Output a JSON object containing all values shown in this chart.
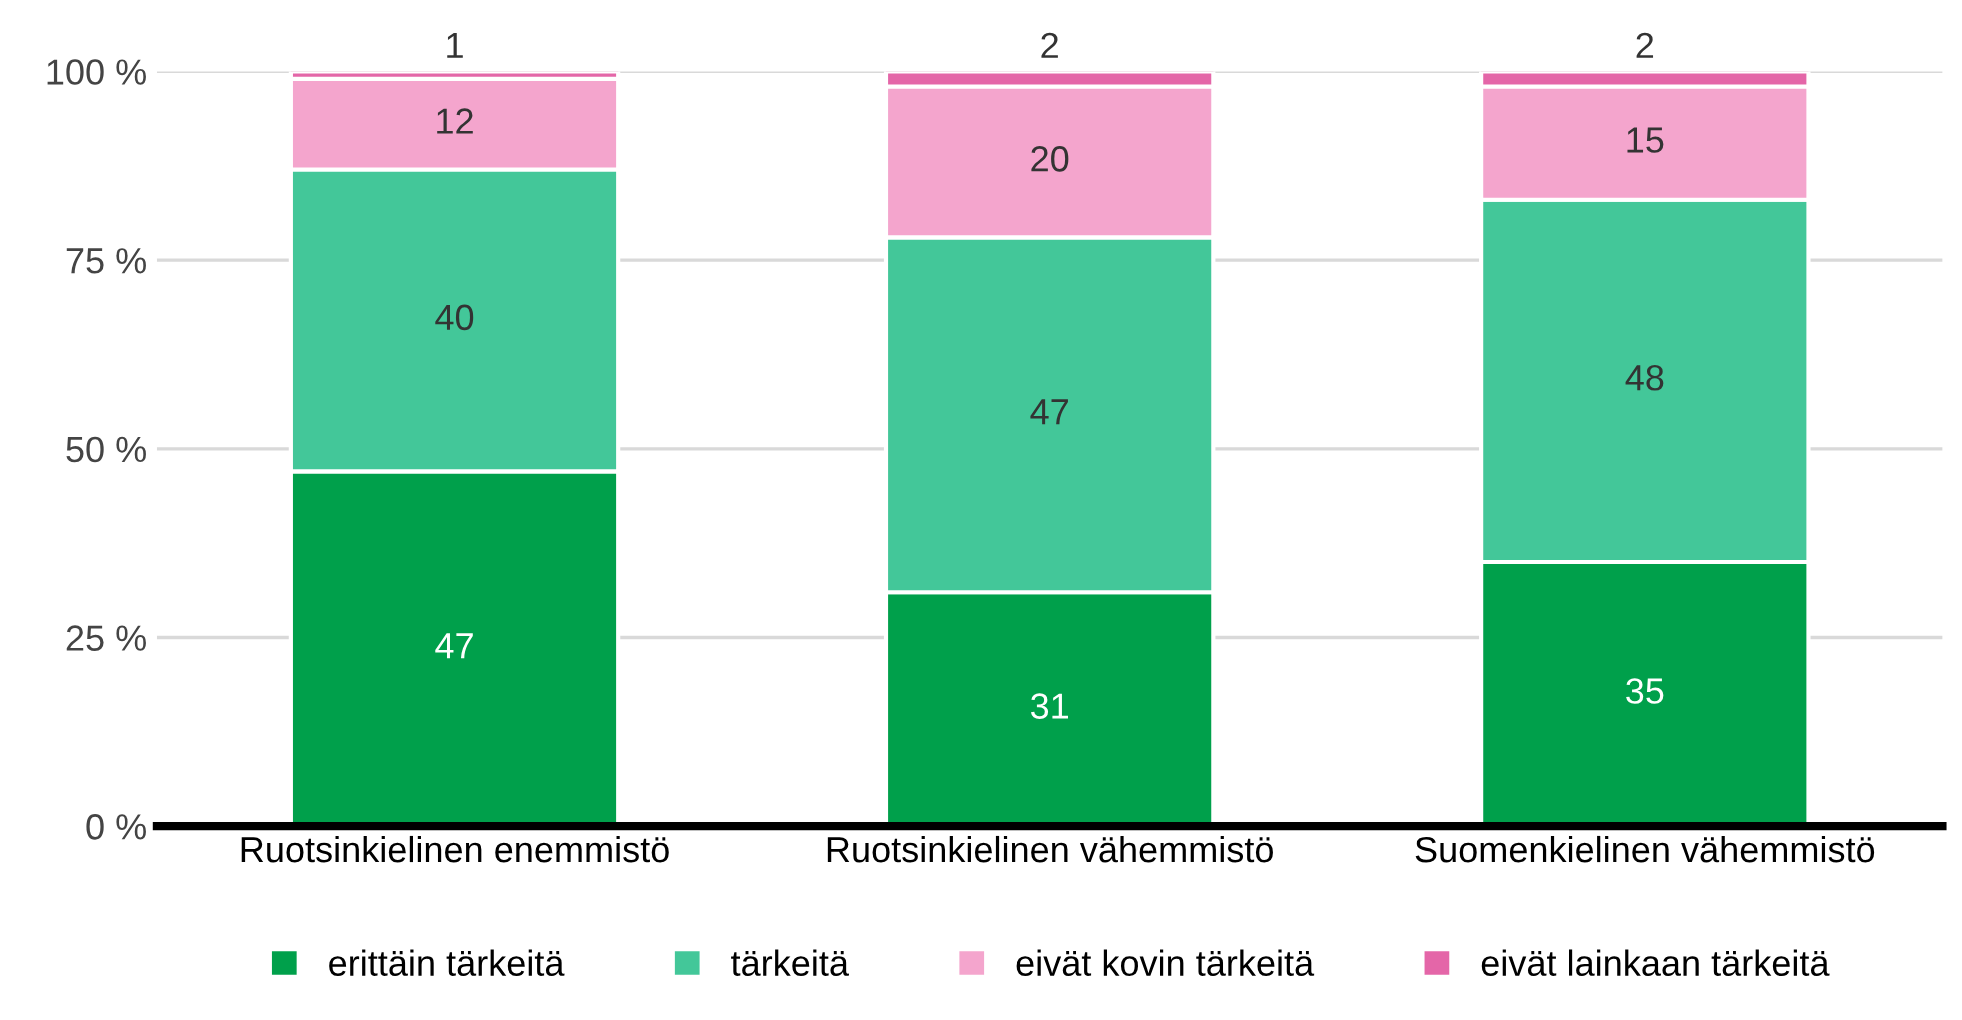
{
  "chart_data": {
    "type": "bar",
    "stacked": true,
    "categories": [
      "Ruotsinkielinen enemmistö",
      "Ruotsinkielinen vähemmistö",
      "Suomenkielinen vähemmistö"
    ],
    "series": [
      {
        "name": "erittäin tärkeitä",
        "color": "#00a04b",
        "values": [
          47,
          31,
          35
        ]
      },
      {
        "name": "tärkeitä",
        "color": "#43c799",
        "values": [
          40,
          47,
          48
        ]
      },
      {
        "name": "eivät kovin tärkeitä",
        "color": "#f4a5cd",
        "values": [
          12,
          20,
          15
        ]
      },
      {
        "name": "eivät lainkaan tärkeitä",
        "color": "#e466a8",
        "values": [
          1,
          2,
          2
        ]
      }
    ],
    "ylim": [
      0,
      100
    ],
    "yticks": [
      {
        "value": 0,
        "label": "0 %"
      },
      {
        "value": 25,
        "label": "25 %"
      },
      {
        "value": 50,
        "label": "50 %"
      },
      {
        "value": 75,
        "label": "75 %"
      },
      {
        "value": 100,
        "label": "100 %"
      }
    ],
    "grid": "y",
    "legend": "bottom",
    "data_labels": true
  }
}
